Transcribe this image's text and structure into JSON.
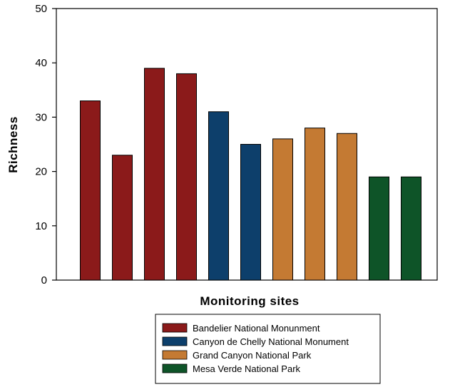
{
  "chart_data": {
    "type": "bar",
    "title": "",
    "xlabel": "Monitoring sites",
    "ylabel": "Richness",
    "ylim": [
      0,
      50
    ],
    "yticks": [
      0,
      10,
      20,
      30,
      40,
      50
    ],
    "grid": false,
    "legend_position": "bottom",
    "groups": [
      {
        "name": "Bandelier National Monunment",
        "color": "#8b1a1a"
      },
      {
        "name": "Canyon de Chelly National Monument",
        "color": "#0d3f6b"
      },
      {
        "name": "Grand Canyon National Park",
        "color": "#c47a33"
      },
      {
        "name": "Mesa Verde National Park",
        "color": "#0e5428"
      }
    ],
    "bars": [
      {
        "value": 33,
        "group": 0
      },
      {
        "value": 23,
        "group": 0
      },
      {
        "value": 39,
        "group": 0
      },
      {
        "value": 38,
        "group": 0
      },
      {
        "value": 31,
        "group": 1
      },
      {
        "value": 25,
        "group": 1
      },
      {
        "value": 26,
        "group": 2
      },
      {
        "value": 28,
        "group": 2
      },
      {
        "value": 27,
        "group": 2
      },
      {
        "value": 19,
        "group": 3
      },
      {
        "value": 19,
        "group": 3
      }
    ]
  }
}
